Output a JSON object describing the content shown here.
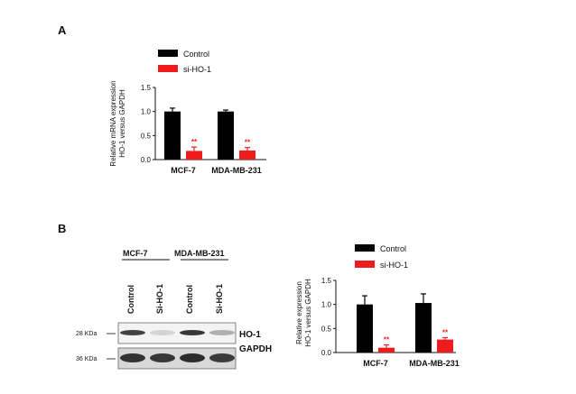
{
  "figure": {
    "panel_a_label": "A",
    "panel_b_label": "B"
  },
  "colors": {
    "control": "#000000",
    "si_ho1": "#ee1c1c",
    "sig": "#ee1c1c",
    "axis": "#111111"
  },
  "chart_data": [
    {
      "type": "bar",
      "panel": "A",
      "title": "",
      "ylabel_line1": "Relative mRNA expression",
      "ylabel_line2": "HO-1 versus GAPDH",
      "xlabel": "",
      "categories": [
        "MCF-7",
        "MDA-MB-231"
      ],
      "series": [
        {
          "name": "Control",
          "values": [
            1.0,
            1.0
          ],
          "errors": [
            0.07,
            0.03
          ]
        },
        {
          "name": "si-HO-1",
          "values": [
            0.18,
            0.19
          ],
          "errors": [
            0.08,
            0.06
          ]
        }
      ],
      "significance": [
        "**",
        "**"
      ],
      "ylim": [
        0,
        1.5
      ],
      "yticks": [
        "0.0",
        "0.5",
        "1.0",
        "1.5"
      ],
      "legend_position": "top"
    },
    {
      "type": "bar",
      "panel": "B",
      "title": "",
      "ylabel_line1": "Relative expression",
      "ylabel_line2": "HO-1 versus GAPDH",
      "xlabel": "",
      "categories": [
        "MCF-7",
        "MDA-MB-231"
      ],
      "series": [
        {
          "name": "Control",
          "values": [
            1.0,
            1.03
          ],
          "errors": [
            0.18,
            0.19
          ]
        },
        {
          "name": "si-HO-1",
          "values": [
            0.1,
            0.27
          ],
          "errors": [
            0.06,
            0.04
          ]
        }
      ],
      "significance": [
        "**",
        "**"
      ],
      "ylim": [
        0,
        1.5
      ],
      "yticks": [
        "0.0",
        "0.5",
        "1.0",
        "1.5"
      ],
      "legend_position": "top"
    }
  ],
  "blot": {
    "groups": [
      "MCF-7",
      "MDA-MB-231"
    ],
    "lanes": [
      "Control",
      "Si-HO-1",
      "Control",
      "Si-HO-1"
    ],
    "rows": [
      {
        "size": "28 KDa",
        "protein": "HO-1",
        "intensity": [
          0.85,
          0.12,
          0.9,
          0.3
        ]
      },
      {
        "size": "36 KDa",
        "protein": "GAPDH",
        "intensity": [
          0.92,
          0.9,
          0.95,
          0.88
        ]
      }
    ]
  }
}
